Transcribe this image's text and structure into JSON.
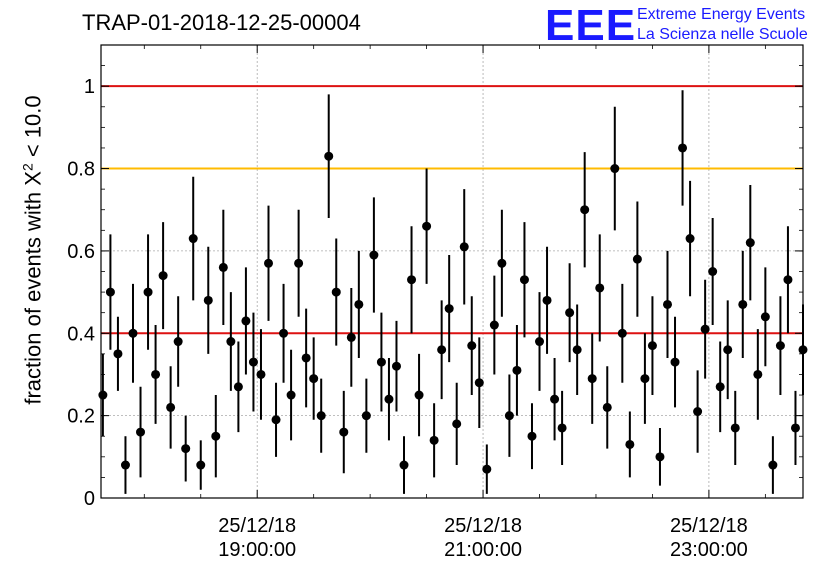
{
  "title": "TRAP-01-2018-12-25-00004",
  "logo": {
    "mark": "EEE",
    "line1": "Extreme Energy Events",
    "line2": "La Scienza nelle Scuole",
    "color": "#1a1aff"
  },
  "ylabel": {
    "prefix": "fraction of events with ",
    "chi": "X",
    "sup": "2",
    "suffix": " < 10.0"
  },
  "colors": {
    "red_line": "#dd1111",
    "orange_line": "#ffbb00",
    "points": "#000000",
    "grid": "#999999"
  },
  "chart_data": {
    "type": "scatter",
    "title": "TRAP-01-2018-12-25-00004",
    "ylabel": "fraction of events with X² < 10.0",
    "xlabel": "",
    "xlim": [
      "2018-12-25 17:37",
      "2018-12-25 23:50"
    ],
    "ylim": [
      0,
      1.1
    ],
    "yticks": [
      0,
      0.2,
      0.4,
      0.6,
      0.8,
      1
    ],
    "ytick_labels": [
      "0",
      "0.2",
      "0.4",
      "0.6",
      "0.8",
      "1"
    ],
    "xticks": [
      {
        "x": "2018-12-25 19:00:00",
        "line1": "25/12/18",
        "line2": "19:00:00"
      },
      {
        "x": "2018-12-25 21:00:00",
        "line1": "25/12/18",
        "line2": "21:00:00"
      },
      {
        "x": "2018-12-25 23:00:00",
        "line1": "25/12/18",
        "line2": "23:00:00"
      }
    ],
    "grid": true,
    "reference_lines": [
      {
        "y": 1.0,
        "color": "#dd1111"
      },
      {
        "y": 0.8,
        "color": "#ffbb00"
      },
      {
        "y": 0.4,
        "color": "#dd1111"
      }
    ],
    "series": [
      {
        "x": [
          "17:38",
          "17:42",
          "17:46",
          "17:50",
          "17:54",
          "17:58",
          "18:02",
          "18:06",
          "18:10",
          "18:14",
          "18:18",
          "18:22",
          "18:26",
          "18:30",
          "18:34",
          "18:38",
          "18:42",
          "18:46",
          "18:50",
          "18:54",
          "18:58",
          "19:02",
          "19:06",
          "19:10",
          "19:14",
          "19:18",
          "19:22",
          "19:26",
          "19:30",
          "19:34",
          "19:38",
          "19:42",
          "19:46",
          "19:50",
          "19:54",
          "19:58",
          "20:02",
          "20:06",
          "20:10",
          "20:14",
          "20:18",
          "20:22",
          "20:26",
          "20:30",
          "20:34",
          "20:38",
          "20:42",
          "20:46",
          "20:50",
          "20:54",
          "20:58",
          "21:02",
          "21:06",
          "21:10",
          "21:14",
          "21:18",
          "21:22",
          "21:26",
          "21:30",
          "21:34",
          "21:38",
          "21:42",
          "21:46",
          "21:50",
          "21:54",
          "21:58",
          "22:02",
          "22:06",
          "22:10",
          "22:14",
          "22:18",
          "22:22",
          "22:26",
          "22:30",
          "22:34",
          "22:38",
          "22:42",
          "22:46",
          "22:50",
          "22:54",
          "22:58",
          "23:02",
          "23:06",
          "23:10",
          "23:14",
          "23:18",
          "23:22",
          "23:26",
          "23:30",
          "23:34",
          "23:38",
          "23:42",
          "23:46",
          "23:50"
        ],
        "y": [
          0.25,
          0.5,
          0.35,
          0.08,
          0.4,
          0.16,
          0.5,
          0.3,
          0.54,
          0.22,
          0.38,
          0.12,
          0.63,
          0.08,
          0.48,
          0.15,
          0.56,
          0.38,
          0.27,
          0.43,
          0.33,
          0.3,
          0.57,
          0.19,
          0.4,
          0.25,
          0.57,
          0.34,
          0.29,
          0.2,
          0.83,
          0.5,
          0.16,
          0.39,
          0.47,
          0.2,
          0.59,
          0.33,
          0.24,
          0.32,
          0.08,
          0.53,
          0.25,
          0.66,
          0.14,
          0.36,
          0.46,
          0.18,
          0.61,
          0.37,
          0.28,
          0.07,
          0.42,
          0.57,
          0.2,
          0.31,
          0.53,
          0.15,
          0.38,
          0.48,
          0.24,
          0.17,
          0.45,
          0.36,
          0.7,
          0.29,
          0.51,
          0.22,
          0.8,
          0.4,
          0.13,
          0.58,
          0.29,
          0.37,
          0.1,
          0.47,
          0.33,
          0.85,
          0.63,
          0.21,
          0.41,
          0.55,
          0.27,
          0.36,
          0.17,
          0.47,
          0.62,
          0.3,
          0.44,
          0.08,
          0.37,
          0.53,
          0.17,
          0.36
        ],
        "err": [
          0.1,
          0.14,
          0.09,
          0.07,
          0.12,
          0.11,
          0.14,
          0.12,
          0.13,
          0.1,
          0.11,
          0.08,
          0.15,
          0.06,
          0.13,
          0.1,
          0.14,
          0.12,
          0.11,
          0.13,
          0.12,
          0.11,
          0.14,
          0.09,
          0.12,
          0.11,
          0.13,
          0.12,
          0.1,
          0.09,
          0.15,
          0.13,
          0.1,
          0.12,
          0.13,
          0.09,
          0.14,
          0.12,
          0.1,
          0.11,
          0.07,
          0.13,
          0.1,
          0.14,
          0.09,
          0.12,
          0.13,
          0.1,
          0.14,
          0.12,
          0.11,
          0.06,
          0.12,
          0.13,
          0.1,
          0.11,
          0.14,
          0.08,
          0.12,
          0.13,
          0.1,
          0.09,
          0.12,
          0.11,
          0.14,
          0.11,
          0.13,
          0.1,
          0.15,
          0.12,
          0.08,
          0.14,
          0.11,
          0.12,
          0.07,
          0.13,
          0.11,
          0.14,
          0.14,
          0.1,
          0.12,
          0.13,
          0.11,
          0.12,
          0.09,
          0.13,
          0.14,
          0.11,
          0.12,
          0.07,
          0.12,
          0.13,
          0.09,
          0.11
        ]
      }
    ]
  }
}
